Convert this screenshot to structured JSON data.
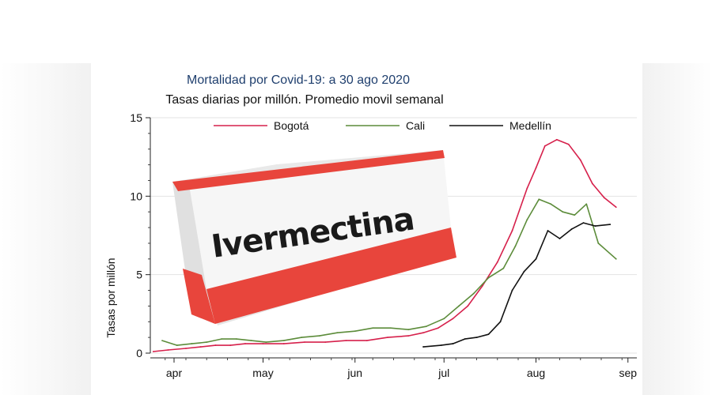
{
  "chart_data": {
    "type": "line",
    "title": "Mortalidad por Covid-19: a  30 ago 2020",
    "subtitle": "Tasas diarias por millón.  Promedio movil semanal",
    "xlabel": "",
    "ylabel": "Tasas por millón",
    "ylim": [
      0,
      15
    ],
    "y_ticks": [
      "0",
      "5",
      "10",
      "15"
    ],
    "x_ticks": [
      "apr",
      "may",
      "jun",
      "jul",
      "aug",
      "sep"
    ],
    "grid": true,
    "legend_position": "top",
    "series": [
      {
        "name": "Bogotá",
        "color": "#d6204b",
        "x": [
          "2020-03-25",
          "2020-03-30",
          "2020-04-05",
          "2020-04-10",
          "2020-04-15",
          "2020-04-20",
          "2020-04-25",
          "2020-05-01",
          "2020-05-08",
          "2020-05-15",
          "2020-05-22",
          "2020-05-29",
          "2020-06-05",
          "2020-06-12",
          "2020-06-19",
          "2020-06-24",
          "2020-06-29",
          "2020-07-04",
          "2020-07-09",
          "2020-07-14",
          "2020-07-19",
          "2020-07-24",
          "2020-07-29",
          "2020-08-01",
          "2020-08-04",
          "2020-08-08",
          "2020-08-12",
          "2020-08-16",
          "2020-08-20",
          "2020-08-24",
          "2020-08-28"
        ],
        "y": [
          0.1,
          0.2,
          0.3,
          0.4,
          0.5,
          0.5,
          0.6,
          0.6,
          0.6,
          0.7,
          0.7,
          0.8,
          0.8,
          1.0,
          1.1,
          1.3,
          1.6,
          2.2,
          3.0,
          4.3,
          5.8,
          7.8,
          10.5,
          11.8,
          13.2,
          13.6,
          13.3,
          12.3,
          10.8,
          9.9,
          9.3
        ]
      },
      {
        "name": "Cali",
        "color": "#5c8c3a",
        "x": [
          "2020-03-28",
          "2020-04-02",
          "2020-04-07",
          "2020-04-12",
          "2020-04-17",
          "2020-04-22",
          "2020-04-27",
          "2020-05-02",
          "2020-05-08",
          "2020-05-14",
          "2020-05-20",
          "2020-05-26",
          "2020-06-01",
          "2020-06-07",
          "2020-06-13",
          "2020-06-19",
          "2020-06-25",
          "2020-07-01",
          "2020-07-06",
          "2020-07-11",
          "2020-07-16",
          "2020-07-21",
          "2020-07-25",
          "2020-07-29",
          "2020-08-02",
          "2020-08-06",
          "2020-08-10",
          "2020-08-14",
          "2020-08-18",
          "2020-08-22",
          "2020-08-28"
        ],
        "y": [
          0.8,
          0.5,
          0.6,
          0.7,
          0.9,
          0.9,
          0.8,
          0.7,
          0.8,
          1.0,
          1.1,
          1.3,
          1.4,
          1.6,
          1.6,
          1.5,
          1.7,
          2.2,
          3.0,
          3.8,
          4.8,
          5.4,
          6.8,
          8.5,
          9.8,
          9.5,
          9.0,
          8.8,
          9.5,
          7.0,
          6.0
        ]
      },
      {
        "name": "Medellín",
        "color": "#111111",
        "x": [
          "2020-06-24",
          "2020-06-30",
          "2020-07-04",
          "2020-07-08",
          "2020-07-12",
          "2020-07-16",
          "2020-07-20",
          "2020-07-24",
          "2020-07-28",
          "2020-08-01",
          "2020-08-05",
          "2020-08-09",
          "2020-08-13",
          "2020-08-17",
          "2020-08-21",
          "2020-08-26"
        ],
        "y": [
          0.4,
          0.5,
          0.6,
          0.9,
          1.0,
          1.2,
          2.0,
          4.0,
          5.2,
          6.0,
          7.8,
          7.3,
          7.9,
          8.3,
          8.1,
          8.2
        ]
      }
    ]
  },
  "overlay": {
    "product_label": "Ivermectina",
    "colors": {
      "box_red": "#e8453c",
      "box_white": "#f6f6f6"
    }
  }
}
